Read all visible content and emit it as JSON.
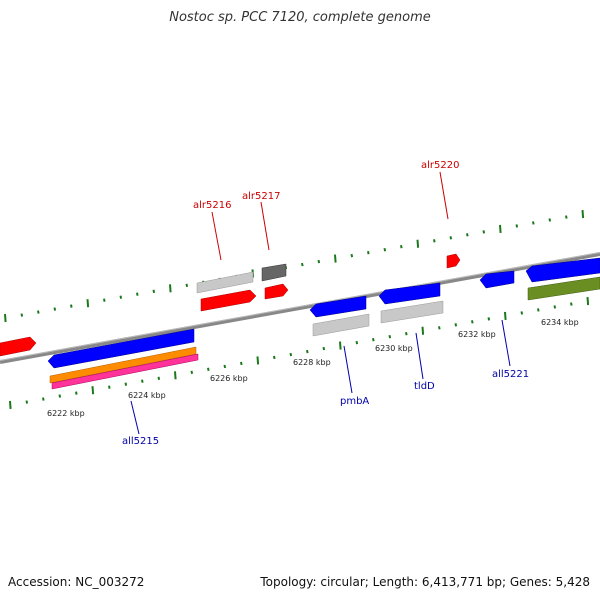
{
  "header": {
    "title": "Nostoc sp. PCC 7120, complete genome"
  },
  "footer": {
    "accession": "Accession: NC_003272",
    "topology": "Topology: circular; Length: 6,413,771 bp; Genes: 5,428"
  },
  "scale_ticks": [
    "6222 kbp",
    "6224 kbp",
    "6226 kbp",
    "6228 kbp",
    "6230 kbp",
    "6232 kbp",
    "6234 kbp"
  ],
  "gene_labels": {
    "forward": [
      "alr5216",
      "alr5217",
      "alr5220"
    ],
    "reverse": [
      "all5215",
      "pmbA",
      "tldD",
      "all5221"
    ]
  },
  "colors": {
    "forward_label": "#cc0000",
    "reverse_label": "#0000aa",
    "forward_gene": "#ff0000",
    "reverse_gene": "#0000ff",
    "hit_gray": "#c8c8c8",
    "dark_gray": "#666666",
    "orange": "#ff8c00",
    "pink": "#ff3399",
    "olive": "#6b8e23",
    "tick_green": "#1a7a1a",
    "backbone": "#888888"
  }
}
